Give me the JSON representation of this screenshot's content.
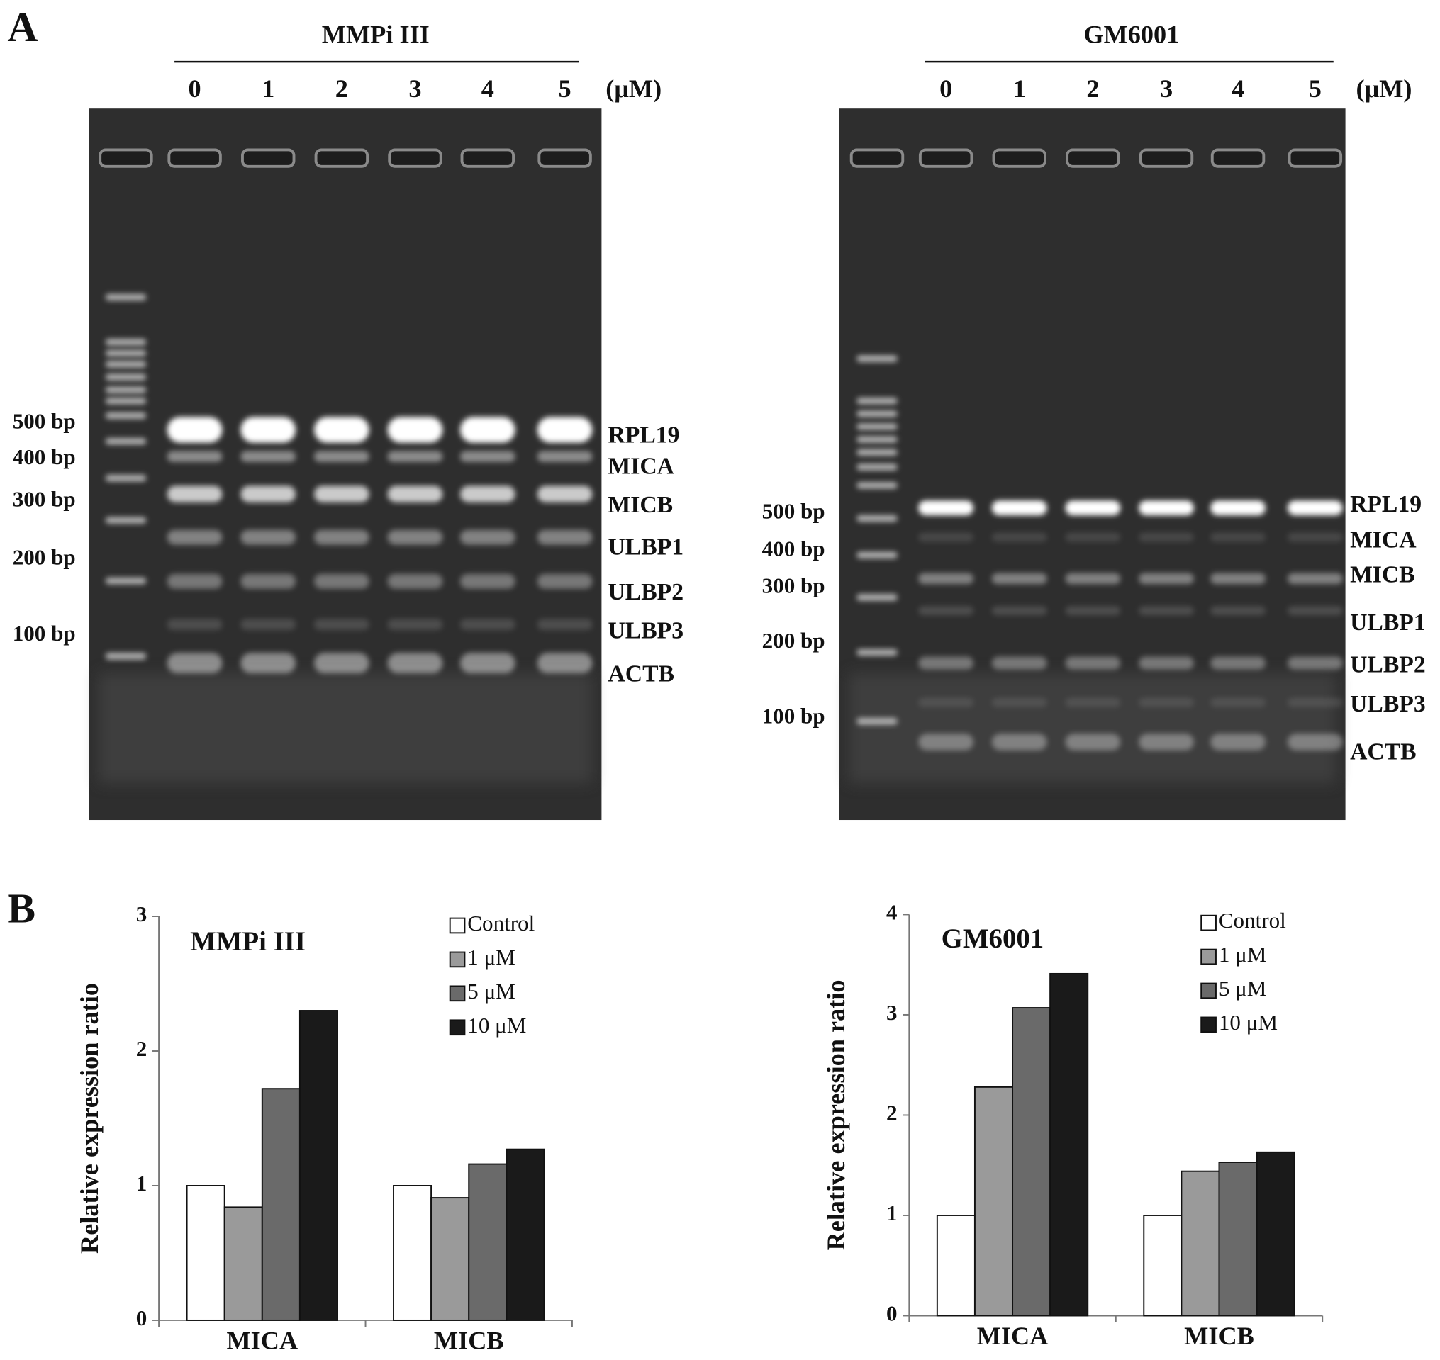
{
  "panel_labels": [
    "A",
    "B"
  ],
  "gels": [
    {
      "title": "MMPi III",
      "lanes": [
        "0",
        "1",
        "2",
        "3",
        "4",
        "5"
      ],
      "unit": "(μM)",
      "markers": [
        "500 bp",
        "400 bp",
        "300 bp",
        "200 bp",
        "100 bp"
      ],
      "genes": [
        "RPL19",
        "MICA",
        "MICB",
        "ULBP1",
        "ULBP2",
        "ULBP3",
        "ACTB"
      ]
    },
    {
      "title": "GM6001",
      "lanes": [
        "0",
        "1",
        "2",
        "3",
        "4",
        "5"
      ],
      "unit": "(μM)",
      "markers": [
        "500 bp",
        "400 bp",
        "300 bp",
        "200 bp",
        "100 bp"
      ],
      "genes": [
        "RPL19",
        "MICA",
        "MICB",
        "ULBP1",
        "ULBP2",
        "ULBP3",
        "ACTB"
      ]
    }
  ],
  "chart_data": [
    {
      "type": "bar",
      "title": "MMPi III",
      "y_label": "Relative expression ratio",
      "categories": [
        "MICA",
        "MICB"
      ],
      "series": [
        {
          "name": "Control",
          "color": "#ffffff",
          "values": [
            1.0,
            1.0
          ]
        },
        {
          "name": "1 μM",
          "color": "#9a9a9a",
          "values": [
            0.84,
            0.91
          ]
        },
        {
          "name": "5 μM",
          "color": "#6a6a6a",
          "values": [
            1.72,
            1.16
          ]
        },
        {
          "name": "10 μM",
          "color": "#1a1a1a",
          "values": [
            2.3,
            1.27
          ]
        }
      ],
      "ylim": [
        0,
        3
      ],
      "yticks": [
        0,
        1,
        2,
        3
      ],
      "legend": "top-right"
    },
    {
      "type": "bar",
      "title": "GM6001",
      "y_label": "Relative expression ratio",
      "categories": [
        "MICA",
        "MICB"
      ],
      "series": [
        {
          "name": "Control",
          "color": "#ffffff",
          "values": [
            1.0,
            1.0
          ]
        },
        {
          "name": "1 μM",
          "color": "#9a9a9a",
          "values": [
            2.28,
            1.44
          ]
        },
        {
          "name": "5 μM",
          "color": "#6a6a6a",
          "values": [
            3.07,
            1.53
          ]
        },
        {
          "name": "10 μM",
          "color": "#1a1a1a",
          "values": [
            3.41,
            1.63
          ]
        }
      ],
      "ylim": [
        0,
        4
      ],
      "yticks": [
        0,
        1,
        2,
        3,
        4
      ],
      "legend": "top-right"
    }
  ]
}
